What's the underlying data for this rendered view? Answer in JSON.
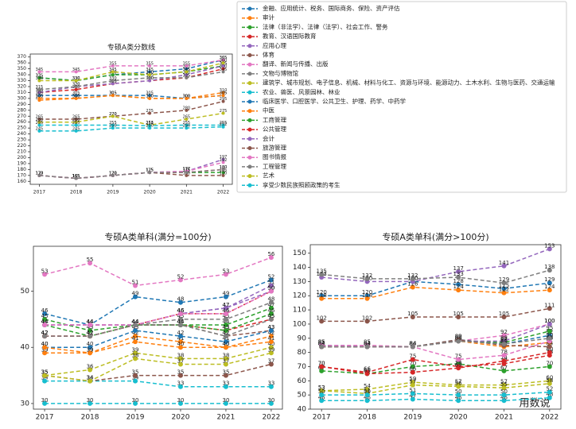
{
  "chart_data": [
    {
      "type": "line",
      "title": "专硕A类分数线",
      "categories": [
        "2017",
        "2018",
        "2019",
        "2020",
        "2021",
        "2022"
      ],
      "ylim": [
        155,
        375
      ],
      "yticks": [
        160,
        170,
        180,
        190,
        200,
        210,
        220,
        230,
        240,
        250,
        260,
        270,
        280,
        290,
        300,
        310,
        320,
        330,
        340,
        350,
        360,
        370
      ],
      "series": [
        {
          "name": "金融、应用统计、税务、国际商务、保险、资产评估",
          "color": "#1f77b4",
          "values": [
            335,
            330,
            340,
            345,
            350,
            365
          ]
        },
        {
          "name": "审计",
          "color": "#ff7f0e",
          "values": [
            297,
            300,
            305,
            300,
            300,
            310
          ]
        },
        {
          "name": "法律（非法学）、法律（法学）、社会工作、警务",
          "color": "#2ca02c",
          "values": [
            335,
            330,
            340,
            340,
            345,
            355
          ]
        },
        {
          "name": "教育、汉语国际教育",
          "color": "#d62728",
          "values": [
            310,
            315,
            325,
            330,
            335,
            350
          ]
        },
        {
          "name": "应用心理",
          "color": "#9467bd",
          "values": [
            310,
            320,
            325,
            330,
            340,
            355
          ]
        },
        {
          "name": "体育",
          "color": "#8c564b",
          "values": [
            265,
            265,
            270,
            275,
            280,
            295
          ]
        },
        {
          "name": "翻译、新闻与传播、出版",
          "color": "#e377c2",
          "values": [
            345,
            345,
            355,
            355,
            355,
            365
          ]
        },
        {
          "name": "文物与博物馆",
          "color": "#7f7f7f",
          "values": [
            315,
            320,
            330,
            335,
            335,
            345
          ]
        },
        {
          "name": "建筑学、城市规划、电子信息、机械、材料与化工、资源与环境、能源动力、土木水利、生物与医药、交通运输",
          "color": "#bcbd22",
          "values": [
            260,
            260,
            270,
            255,
            265,
            275
          ]
        },
        {
          "name": "农业、兽医、风景园林、林业",
          "color": "#17becf",
          "values": [
            255,
            255,
            255,
            254,
            255,
            255
          ]
        },
        {
          "name": "临床医学、口腔医学、公共卫生、护理、药学、中药学",
          "color": "#1f77b4",
          "values": [
            305,
            305,
            305,
            305,
            300,
            305
          ]
        },
        {
          "name": "中医",
          "color": "#ff7f0e",
          "values": [
            300,
            300,
            305,
            300,
            300,
            305
          ]
        },
        {
          "name": "工商管理",
          "color": "#2ca02c",
          "values": [
            170,
            165,
            170,
            175,
            175,
            175
          ]
        },
        {
          "name": "公共管理",
          "color": "#d62728",
          "values": [
            170,
            165,
            170,
            175,
            175,
            180
          ]
        },
        {
          "name": "会计",
          "color": "#9467bd",
          "values": [
            170,
            165,
            170,
            175,
            177,
            197
          ]
        },
        {
          "name": "旅游管理",
          "color": "#8c564b",
          "values": [
            170,
            165,
            170,
            175,
            170,
            170
          ]
        },
        {
          "name": "图书情报",
          "color": "#e377c2",
          "values": [
            170,
            165,
            170,
            175,
            177,
            192
          ]
        },
        {
          "name": "工程管理",
          "color": "#7f7f7f",
          "values": [
            170,
            165,
            170,
            175,
            175,
            180
          ]
        },
        {
          "name": "艺术",
          "color": "#bcbd22",
          "values": [
            330,
            330,
            345,
            340,
            345,
            360
          ]
        },
        {
          "name": "享受少数民族照顾政策的考生",
          "color": "#17becf",
          "values": [
            245,
            245,
            250,
            250,
            250,
            252
          ]
        }
      ]
    },
    {
      "type": "line",
      "title": "专硕A类单科(满分=100分)",
      "categories": [
        "2017",
        "2018",
        "2019",
        "2020",
        "2021",
        "2022"
      ],
      "ylim": [
        29,
        58
      ],
      "yticks": [
        30,
        40,
        50
      ],
      "series": [
        {
          "color": "#1f77b4",
          "values": [
            46,
            44,
            49,
            48,
            49,
            52
          ]
        },
        {
          "color": "#ff7f0e",
          "values": [
            39,
            39,
            42,
            41,
            40,
            42
          ]
        },
        {
          "color": "#2ca02c",
          "values": [
            45,
            43,
            44,
            44,
            44,
            47
          ]
        },
        {
          "color": "#d62728",
          "values": [
            42,
            42,
            44,
            44,
            43,
            45
          ]
        },
        {
          "color": "#9467bd",
          "values": [
            44,
            44,
            44,
            46,
            47,
            51
          ]
        },
        {
          "color": "#8c564b",
          "values": [
            42,
            42,
            44,
            44,
            42,
            43
          ]
        },
        {
          "color": "#e377c2",
          "values": [
            53,
            55,
            51,
            52,
            53,
            56
          ]
        },
        {
          "color": "#7f7f7f",
          "values": [
            44,
            44,
            44,
            45,
            45,
            48
          ]
        },
        {
          "color": "#bcbd22",
          "values": [
            35,
            36,
            39,
            38,
            38,
            40
          ]
        },
        {
          "color": "#17becf",
          "values": [
            34,
            34,
            34,
            33,
            33,
            33
          ]
        },
        {
          "color": "#1f77b4",
          "values": [
            40,
            40,
            43,
            42,
            41,
            43
          ]
        },
        {
          "color": "#ff7f0e",
          "values": [
            40,
            39,
            41,
            40,
            40,
            41
          ]
        },
        {
          "color": "#2ca02c",
          "values": [
            44,
            42,
            44,
            44,
            43,
            46
          ]
        },
        {
          "color": "#d62728",
          "values": [
            42,
            42,
            44,
            46,
            46,
            50
          ]
        },
        {
          "color": "#9467bd",
          "values": [
            44,
            44,
            44,
            46,
            47,
            50
          ]
        },
        {
          "color": "#8c564b",
          "values": [
            35,
            34,
            35,
            35,
            35,
            37
          ]
        },
        {
          "color": "#e377c2",
          "values": [
            44,
            44,
            44,
            46,
            46,
            50
          ]
        },
        {
          "color": "#7f7f7f",
          "values": [
            42,
            42,
            44,
            44,
            42,
            45
          ]
        },
        {
          "color": "#bcbd22",
          "values": [
            35,
            34,
            38,
            37,
            37,
            39
          ]
        },
        {
          "color": "#17becf",
          "values": [
            30,
            30,
            30,
            30,
            30,
            30
          ]
        }
      ]
    },
    {
      "type": "line",
      "title": "专硕A类单科(满分>100分)",
      "categories": [
        "2017",
        "2018",
        "2019",
        "2020",
        "2021",
        "2022"
      ],
      "ylim": [
        40,
        156
      ],
      "yticks": [
        40,
        50,
        60,
        70,
        80,
        90,
        100,
        110,
        120,
        130,
        140,
        150
      ],
      "series": [
        {
          "color": "#1f77b4",
          "values": [
            120,
            120,
            130,
            128,
            125,
            129
          ]
        },
        {
          "color": "#ff7f0e",
          "values": [
            118,
            118,
            126,
            124,
            122,
            124
          ]
        },
        {
          "color": "#2ca02c",
          "values": [
            67,
            65,
            70,
            72,
            67,
            70
          ]
        },
        {
          "color": "#d62728",
          "values": [
            70,
            66,
            75,
            70,
            72,
            78
          ]
        },
        {
          "color": "#9467bd",
          "values": [
            133,
            130,
            130,
            137,
            141,
            153
          ]
        },
        {
          "color": "#8c564b",
          "values": [
            102,
            102,
            105,
            105,
            105,
            111
          ]
        },
        {
          "color": "#e377c2",
          "values": [
            85,
            85,
            84,
            88,
            92,
            100
          ]
        },
        {
          "color": "#7f7f7f",
          "values": [
            135,
            132,
            132,
            133,
            129,
            138
          ]
        },
        {
          "color": "#bcbd22",
          "values": [
            53,
            54,
            59,
            57,
            57,
            60
          ]
        },
        {
          "color": "#17becf",
          "values": [
            46,
            46,
            47,
            46,
            46,
            48
          ]
        },
        {
          "color": "#1f77b4",
          "values": [
            85,
            84,
            84,
            89,
            86,
            92
          ]
        },
        {
          "color": "#ff7f0e",
          "values": [
            84,
            84,
            84,
            88,
            84,
            87
          ]
        },
        {
          "color": "#2ca02c",
          "values": [
            84,
            84,
            84,
            88,
            87,
            95
          ]
        },
        {
          "color": "#d62728",
          "values": [
            70,
            65,
            66,
            69,
            74,
            80
          ]
        },
        {
          "color": "#9467bd",
          "values": [
            84,
            84,
            84,
            88,
            88,
            100
          ]
        },
        {
          "color": "#8c564b",
          "values": [
            84,
            84,
            84,
            89,
            85,
            84
          ]
        },
        {
          "color": "#e377c2",
          "values": [
            85,
            84,
            84,
            75,
            78,
            88
          ]
        },
        {
          "color": "#7f7f7f",
          "values": [
            84,
            84,
            84,
            88,
            86,
            90
          ]
        },
        {
          "color": "#bcbd22",
          "values": [
            53,
            51,
            57,
            56,
            55,
            58
          ]
        },
        {
          "color": "#17becf",
          "values": [
            50,
            50,
            51,
            50,
            50,
            52
          ]
        }
      ]
    }
  ],
  "watermark": "用数说"
}
